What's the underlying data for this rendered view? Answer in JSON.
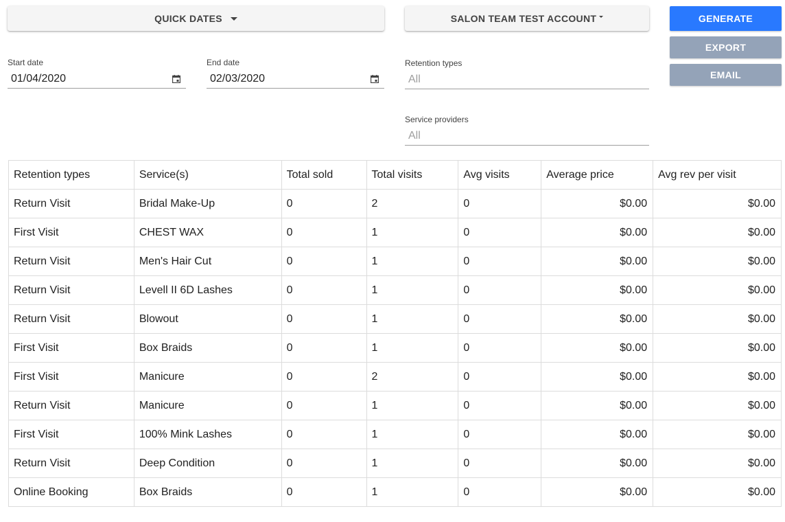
{
  "toolbar": {
    "quick_dates_label": "QUICK DATES",
    "account_label": "SALON TEAM TEST ACCOUNT",
    "generate_label": "GENERATE",
    "export_label": "EXPORT",
    "email_label": "EMAIL"
  },
  "filters": {
    "start_date": {
      "label": "Start date",
      "value": "01/04/2020",
      "icon": "calendar-icon"
    },
    "end_date": {
      "label": "End date",
      "value": "02/03/2020",
      "icon": "calendar-icon"
    },
    "retention_types": {
      "label": "Retention types",
      "value": "All"
    },
    "service_providers": {
      "label": "Service providers",
      "value": "All"
    }
  },
  "colors": {
    "primary": "#2979ff",
    "disabled": "#94a3b8"
  },
  "table": {
    "headers": [
      "Retention types",
      "Service(s)",
      "Total sold",
      "Total visits",
      "Avg visits",
      "Average price",
      "Avg rev per visit"
    ],
    "rows": [
      [
        "Return Visit",
        "Bridal Make-Up",
        "0",
        "2",
        "0",
        "$0.00",
        "$0.00"
      ],
      [
        "First Visit",
        "CHEST WAX",
        "0",
        "1",
        "0",
        "$0.00",
        "$0.00"
      ],
      [
        "Return Visit",
        "Men's Hair Cut",
        "0",
        "1",
        "0",
        "$0.00",
        "$0.00"
      ],
      [
        "Return Visit",
        "Levell II 6D Lashes",
        "0",
        "1",
        "0",
        "$0.00",
        "$0.00"
      ],
      [
        "Return Visit",
        "Blowout",
        "0",
        "1",
        "0",
        "$0.00",
        "$0.00"
      ],
      [
        "First Visit",
        "Box Braids",
        "0",
        "1",
        "0",
        "$0.00",
        "$0.00"
      ],
      [
        "First Visit",
        "Manicure",
        "0",
        "2",
        "0",
        "$0.00",
        "$0.00"
      ],
      [
        "Return Visit",
        "Manicure",
        "0",
        "1",
        "0",
        "$0.00",
        "$0.00"
      ],
      [
        "First Visit",
        "100% Mink Lashes",
        "0",
        "1",
        "0",
        "$0.00",
        "$0.00"
      ],
      [
        "Return Visit",
        "Deep Condition",
        "0",
        "1",
        "0",
        "$0.00",
        "$0.00"
      ],
      [
        "Online Booking",
        "Box Braids",
        "0",
        "1",
        "0",
        "$0.00",
        "$0.00"
      ]
    ]
  }
}
